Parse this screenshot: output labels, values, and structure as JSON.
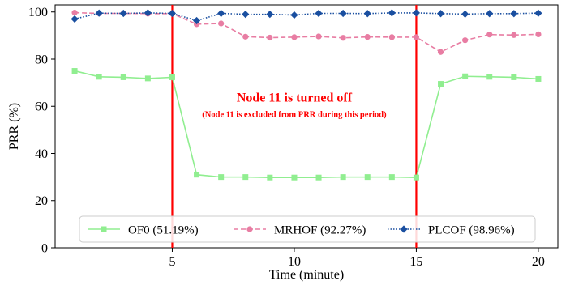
{
  "chart_data": {
    "type": "line",
    "title": "",
    "xlabel": "Time (minute)",
    "ylabel": "PRR (%)",
    "xlim": [
      0.2,
      20.8
    ],
    "ylim": [
      0,
      103
    ],
    "xticks": [
      5,
      10,
      15,
      20
    ],
    "yticks": [
      0,
      20,
      40,
      60,
      80,
      100
    ],
    "grid": false,
    "legend_position": "bottom-center",
    "x": [
      1,
      2,
      3,
      4,
      5,
      6,
      7,
      8,
      9,
      10,
      11,
      12,
      13,
      14,
      15,
      16,
      17,
      18,
      19,
      20
    ],
    "series": [
      {
        "name": "OF0 (51.19%)",
        "color": "#90ee90",
        "line_style": "solid",
        "marker": "square",
        "values": [
          75.0,
          72.5,
          72.3,
          71.8,
          72.3,
          31.0,
          30.0,
          30.0,
          29.8,
          29.8,
          29.8,
          30.0,
          30.0,
          30.0,
          29.8,
          69.5,
          72.7,
          72.5,
          72.3,
          71.6
        ]
      },
      {
        "name": "MRHOF (92.27%)",
        "color": "#e87da3",
        "line_style": "dashed",
        "marker": "circle",
        "values": [
          99.7,
          99.4,
          99.4,
          99.3,
          99.3,
          94.8,
          95.1,
          89.5,
          89.1,
          89.3,
          89.6,
          89.0,
          89.4,
          89.3,
          89.3,
          83.0,
          88.0,
          90.4,
          90.2,
          90.5
        ]
      },
      {
        "name": "PLCOF (98.96%)",
        "color": "#1a4fa0",
        "line_style": "dotted",
        "marker": "diamond",
        "values": [
          97.0,
          99.5,
          99.4,
          99.6,
          99.4,
          96.3,
          99.4,
          99.0,
          99.0,
          98.7,
          99.4,
          99.4,
          99.3,
          99.6,
          99.6,
          99.3,
          99.1,
          99.3,
          99.3,
          99.5
        ]
      }
    ],
    "vertical_lines": [
      {
        "x": 5,
        "color": "#ff0000"
      },
      {
        "x": 15,
        "color": "#ff0000"
      }
    ],
    "annotations": [
      {
        "text": "Node 11 is turned off",
        "x": 10,
        "y": 62
      },
      {
        "text": "(Node 11 is excluded from PRR during this period)",
        "x": 10,
        "y": 55.5
      }
    ]
  }
}
